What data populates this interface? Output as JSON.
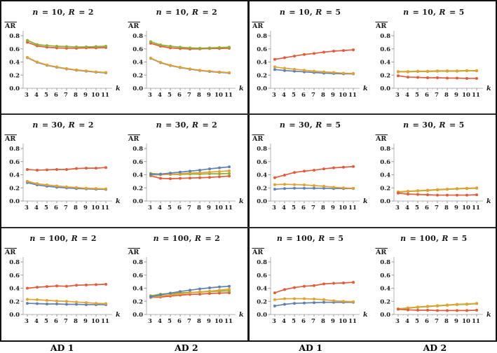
{
  "figure": {
    "panel_labels": [
      "AD 1",
      "AD 2",
      "AD 1",
      "AD 2"
    ]
  },
  "palette": {
    "blue": "#5e81b5",
    "orange": "#e2a230",
    "green": "#8fb032",
    "red": "#e05c3a"
  },
  "axes": {
    "x_label": "k",
    "y_label": "AR",
    "x_ticks": [
      3,
      4,
      5,
      6,
      7,
      8,
      9,
      10,
      11
    ],
    "y_tick_labels": [
      "0.0",
      "0.2",
      "0.4",
      "0.6",
      "0.8"
    ],
    "y_tick_values": [
      0,
      0.2,
      0.4,
      0.6,
      0.8
    ],
    "ylim": [
      0,
      0.9
    ]
  },
  "chart_data": [
    {
      "type": "line",
      "title": "n = 10, R = 2",
      "column_label": "AD 1",
      "x": [
        3,
        4,
        5,
        6,
        7,
        8,
        9,
        10,
        11
      ],
      "series": [
        {
          "name": "blue",
          "values": [
            0.465,
            0.395,
            0.35,
            0.32,
            0.295,
            0.275,
            0.26,
            0.245,
            0.235
          ]
        },
        {
          "name": "orange",
          "values": [
            0.47,
            0.4,
            0.355,
            0.325,
            0.3,
            0.28,
            0.265,
            0.25,
            0.24
          ]
        },
        {
          "name": "red",
          "values": [
            0.7,
            0.645,
            0.625,
            0.615,
            0.61,
            0.61,
            0.615,
            0.615,
            0.62
          ]
        },
        {
          "name": "green",
          "values": [
            0.73,
            0.665,
            0.65,
            0.64,
            0.635,
            0.63,
            0.63,
            0.635,
            0.64
          ]
        }
      ]
    },
    {
      "type": "line",
      "title": "n = 10, R = 2",
      "column_label": "AD 2",
      "x": [
        3,
        4,
        5,
        6,
        7,
        8,
        9,
        10,
        11
      ],
      "series": [
        {
          "name": "blue",
          "values": [
            0.455,
            0.39,
            0.345,
            0.315,
            0.29,
            0.27,
            0.255,
            0.243,
            0.233
          ]
        },
        {
          "name": "orange",
          "values": [
            0.46,
            0.395,
            0.35,
            0.32,
            0.295,
            0.275,
            0.26,
            0.248,
            0.238
          ]
        },
        {
          "name": "red",
          "values": [
            0.685,
            0.64,
            0.615,
            0.605,
            0.598,
            0.6,
            0.605,
            0.605,
            0.61
          ]
        },
        {
          "name": "green",
          "values": [
            0.71,
            0.66,
            0.64,
            0.625,
            0.615,
            0.61,
            0.615,
            0.62,
            0.625
          ]
        }
      ]
    },
    {
      "type": "line",
      "title": "n = 10, R = 5",
      "column_label": "AD 1",
      "x": [
        3,
        4,
        5,
        6,
        7,
        8,
        9,
        10,
        11
      ],
      "series": [
        {
          "name": "blue",
          "values": [
            0.285,
            0.27,
            0.26,
            0.25,
            0.24,
            0.23,
            0.225,
            0.22,
            0.22
          ]
        },
        {
          "name": "orange",
          "values": [
            0.325,
            0.305,
            0.29,
            0.275,
            0.26,
            0.25,
            0.24,
            0.23,
            0.225
          ]
        },
        {
          "name": "red",
          "values": [
            0.44,
            0.465,
            0.49,
            0.515,
            0.53,
            0.55,
            0.565,
            0.575,
            0.585
          ]
        }
      ]
    },
    {
      "type": "line",
      "title": "n = 10, R = 5",
      "column_label": "AD 2",
      "x": [
        3,
        4,
        5,
        6,
        7,
        8,
        9,
        10,
        11
      ],
      "series": [
        {
          "name": "green",
          "values": [
            0.25,
            0.25,
            0.255,
            0.255,
            0.26,
            0.26,
            0.26,
            0.265,
            0.265
          ]
        },
        {
          "name": "orange",
          "values": [
            0.255,
            0.255,
            0.26,
            0.26,
            0.265,
            0.265,
            0.265,
            0.27,
            0.27
          ]
        },
        {
          "name": "red",
          "values": [
            0.19,
            0.17,
            0.165,
            0.16,
            0.16,
            0.155,
            0.155,
            0.15,
            0.15
          ]
        }
      ]
    },
    {
      "type": "line",
      "title": "n = 30, R = 2",
      "column_label": "AD 1",
      "x": [
        3,
        4,
        5,
        6,
        7,
        8,
        9,
        10,
        11
      ],
      "series": [
        {
          "name": "blue",
          "values": [
            0.28,
            0.245,
            0.225,
            0.21,
            0.2,
            0.19,
            0.185,
            0.18,
            0.178
          ]
        },
        {
          "name": "orange",
          "values": [
            0.3,
            0.265,
            0.245,
            0.23,
            0.215,
            0.205,
            0.195,
            0.19,
            0.185
          ]
        },
        {
          "name": "red",
          "values": [
            0.48,
            0.47,
            0.475,
            0.48,
            0.48,
            0.495,
            0.5,
            0.5,
            0.51
          ]
        }
      ]
    },
    {
      "type": "line",
      "title": "n = 30, R = 2",
      "column_label": "AD 2",
      "x": [
        3,
        4,
        5,
        6,
        7,
        8,
        9,
        10,
        11
      ],
      "series": [
        {
          "name": "red",
          "values": [
            0.385,
            0.345,
            0.34,
            0.345,
            0.35,
            0.355,
            0.36,
            0.37,
            0.38
          ]
        },
        {
          "name": "green",
          "values": [
            0.42,
            0.41,
            0.405,
            0.405,
            0.41,
            0.41,
            0.415,
            0.415,
            0.42
          ]
        },
        {
          "name": "orange",
          "values": [
            0.4,
            0.4,
            0.405,
            0.415,
            0.425,
            0.43,
            0.44,
            0.45,
            0.46
          ]
        },
        {
          "name": "blue",
          "values": [
            0.405,
            0.41,
            0.425,
            0.44,
            0.455,
            0.47,
            0.49,
            0.505,
            0.52
          ]
        }
      ]
    },
    {
      "type": "line",
      "title": "n = 30, R = 5",
      "column_label": "AD 1",
      "x": [
        3,
        4,
        5,
        6,
        7,
        8,
        9,
        10,
        11
      ],
      "series": [
        {
          "name": "blue",
          "values": [
            0.18,
            0.19,
            0.195,
            0.195,
            0.195,
            0.195,
            0.19,
            0.19,
            0.19
          ]
        },
        {
          "name": "orange",
          "values": [
            0.25,
            0.255,
            0.25,
            0.245,
            0.235,
            0.225,
            0.21,
            0.2,
            0.195
          ]
        },
        {
          "name": "red",
          "values": [
            0.355,
            0.395,
            0.435,
            0.455,
            0.47,
            0.49,
            0.505,
            0.515,
            0.525
          ]
        }
      ]
    },
    {
      "type": "line",
      "title": "n = 30, R = 5",
      "column_label": "AD 2",
      "x": [
        3,
        4,
        5,
        6,
        7,
        8,
        9,
        10,
        11
      ],
      "series": [
        {
          "name": "green",
          "values": [
            0.135,
            0.145,
            0.153,
            0.16,
            0.17,
            0.177,
            0.185,
            0.19,
            0.195
          ]
        },
        {
          "name": "orange",
          "values": [
            0.14,
            0.15,
            0.158,
            0.165,
            0.175,
            0.182,
            0.19,
            0.195,
            0.2
          ]
        },
        {
          "name": "red",
          "values": [
            0.12,
            0.105,
            0.1,
            0.095,
            0.09,
            0.09,
            0.09,
            0.09,
            0.095
          ]
        }
      ]
    },
    {
      "type": "line",
      "title": "n = 100, R = 2",
      "column_label": "AD 1",
      "x": [
        3,
        4,
        5,
        6,
        7,
        8,
        9,
        10,
        11
      ],
      "series": [
        {
          "name": "blue",
          "values": [
            0.17,
            0.165,
            0.16,
            0.16,
            0.155,
            0.155,
            0.15,
            0.15,
            0.15
          ]
        },
        {
          "name": "orange",
          "values": [
            0.23,
            0.225,
            0.215,
            0.205,
            0.2,
            0.19,
            0.18,
            0.17,
            0.165
          ]
        },
        {
          "name": "red",
          "values": [
            0.4,
            0.415,
            0.425,
            0.435,
            0.43,
            0.445,
            0.45,
            0.455,
            0.46
          ]
        }
      ]
    },
    {
      "type": "line",
      "title": "n = 100, R = 2",
      "column_label": "AD 2",
      "x": [
        3,
        4,
        5,
        6,
        7,
        8,
        9,
        10,
        11
      ],
      "series": [
        {
          "name": "red",
          "values": [
            0.26,
            0.265,
            0.28,
            0.295,
            0.305,
            0.31,
            0.32,
            0.325,
            0.33
          ]
        },
        {
          "name": "green",
          "values": [
            0.285,
            0.31,
            0.32,
            0.33,
            0.335,
            0.34,
            0.35,
            0.355,
            0.36
          ]
        },
        {
          "name": "orange",
          "values": [
            0.265,
            0.28,
            0.3,
            0.315,
            0.33,
            0.345,
            0.355,
            0.37,
            0.385
          ]
        },
        {
          "name": "blue",
          "values": [
            0.27,
            0.3,
            0.325,
            0.35,
            0.37,
            0.39,
            0.405,
            0.42,
            0.43
          ]
        }
      ]
    },
    {
      "type": "line",
      "title": "n = 100, R = 5",
      "column_label": "AD 1",
      "x": [
        3,
        4,
        5,
        6,
        7,
        8,
        9,
        10,
        11
      ],
      "series": [
        {
          "name": "blue",
          "values": [
            0.13,
            0.155,
            0.17,
            0.175,
            0.18,
            0.185,
            0.185,
            0.185,
            0.185
          ]
        },
        {
          "name": "orange",
          "values": [
            0.225,
            0.24,
            0.24,
            0.24,
            0.235,
            0.225,
            0.21,
            0.2,
            0.195
          ]
        },
        {
          "name": "red",
          "values": [
            0.33,
            0.38,
            0.41,
            0.43,
            0.44,
            0.465,
            0.475,
            0.48,
            0.49
          ]
        }
      ]
    },
    {
      "type": "line",
      "title": "n = 100, R = 5",
      "column_label": "AD 2",
      "x": [
        3,
        4,
        5,
        6,
        7,
        8,
        9,
        10,
        11
      ],
      "series": [
        {
          "name": "green",
          "values": [
            0.08,
            0.095,
            0.11,
            0.12,
            0.13,
            0.14,
            0.15,
            0.155,
            0.165
          ]
        },
        {
          "name": "orange",
          "values": [
            0.085,
            0.1,
            0.115,
            0.125,
            0.135,
            0.145,
            0.155,
            0.16,
            0.17
          ]
        },
        {
          "name": "red",
          "values": [
            0.08,
            0.07,
            0.065,
            0.065,
            0.06,
            0.06,
            0.06,
            0.06,
            0.065
          ]
        }
      ]
    }
  ]
}
